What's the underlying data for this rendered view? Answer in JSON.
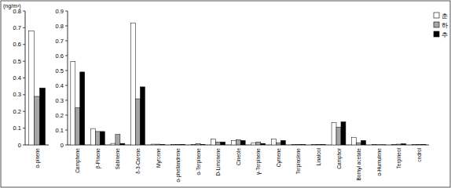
{
  "chart_data": [
    {
      "type": "bar",
      "ylabel": "(ng/m³)",
      "categories": [
        "α-pinene"
      ],
      "series": [
        {
          "name": "춘",
          "color": "#ffffff",
          "values": [
            0.68
          ]
        },
        {
          "name": "하",
          "color": "#a6a6a6",
          "values": [
            0.29
          ]
        },
        {
          "name": "추",
          "color": "#000000",
          "values": [
            0.34
          ]
        }
      ],
      "ylim": [
        0,
        0.8
      ],
      "yticks": [
        0,
        0.1,
        0.2,
        0.3,
        0.4,
        0.5,
        0.6,
        0.7,
        0.8
      ]
    },
    {
      "type": "bar",
      "categories": [
        "Camphene",
        "β-Pinene",
        "Sabinene",
        "δ-3-Carene",
        "Myrcene",
        "α-phellandrene",
        "α-Terpinene",
        "D-Limonene",
        "Cineole",
        "γ-Terpinene",
        "Cymene",
        "Terpinolene",
        "Linalool",
        "Camphor",
        "Bornyl acetate",
        "α-Humulene",
        "Terpineol",
        "cedrol"
      ],
      "series": [
        {
          "name": "춘",
          "color": "#ffffff",
          "values": [
            0.56,
            0.11,
            0.01,
            0.82,
            0.005,
            0.003,
            0.003,
            0.04,
            0.03,
            0.015,
            0.04,
            0.003,
            0.003,
            0.15,
            0.05,
            0.002,
            0.003,
            0.003
          ]
        },
        {
          "name": "하",
          "color": "#a6a6a6",
          "values": [
            0.25,
            0.09,
            0.07,
            0.31,
            0.005,
            0.003,
            0.008,
            0.02,
            0.035,
            0.02,
            0.015,
            0.002,
            0.002,
            0.12,
            0.015,
            0.001,
            0.005,
            0.002
          ]
        },
        {
          "name": "추",
          "color": "#000000",
          "values": [
            0.49,
            0.09,
            0.01,
            0.39,
            0.003,
            0.003,
            0.003,
            0.02,
            0.03,
            0.01,
            0.03,
            0.002,
            0.002,
            0.155,
            0.03,
            0.001,
            0.008,
            0.002
          ]
        }
      ],
      "ylim": [
        0,
        0.9
      ],
      "yticks": [
        0,
        0.1,
        0.2,
        0.3,
        0.4,
        0.5,
        0.6,
        0.7,
        0.8,
        0.9
      ],
      "legend": "upper right"
    }
  ]
}
